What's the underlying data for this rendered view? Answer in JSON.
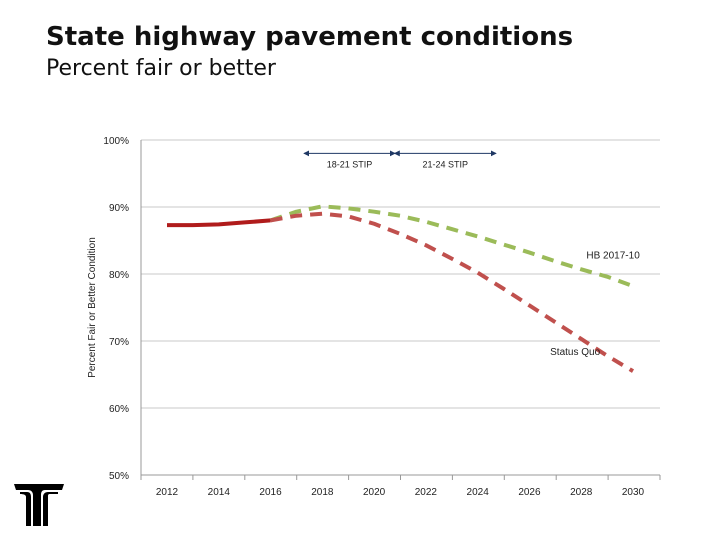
{
  "slide": {
    "title": "State highway pavement conditions",
    "subtitle": "Percent fair or better"
  },
  "chart_data": {
    "type": "line",
    "ylabel": "Percent Fair or Better Condition",
    "xlabel": "",
    "ylim": [
      50,
      100
    ],
    "yticks": [
      "50%",
      "60%",
      "70%",
      "80%",
      "90%",
      "100%"
    ],
    "xticks": [
      "2012",
      "2014",
      "2016",
      "2018",
      "2020",
      "2022",
      "2024",
      "2026",
      "2028",
      "2030"
    ],
    "xlim": [
      2012,
      2030
    ],
    "grid": "horizontal",
    "series": [
      {
        "style": "solid",
        "color": "#b01c1c",
        "x": [
          2012,
          2013,
          2014,
          2015,
          2016
        ],
        "y": [
          87.3,
          87.3,
          87.4,
          87.7,
          88.0
        ]
      },
      {
        "name": "HB 2017-10",
        "style": "dashed",
        "color": "#9bbb59",
        "x": [
          2016,
          2017,
          2018,
          2019,
          2020,
          2021,
          2022,
          2023,
          2024,
          2025,
          2026,
          2027,
          2028,
          2029,
          2030
        ],
        "y": [
          88.0,
          89.3,
          90.1,
          89.8,
          89.3,
          88.7,
          87.8,
          86.7,
          85.6,
          84.4,
          83.2,
          81.9,
          80.7,
          79.6,
          78.2
        ]
      },
      {
        "name": "Status Quo",
        "style": "dashed",
        "color": "#c0504d",
        "x": [
          2016,
          2017,
          2018,
          2019,
          2020,
          2021,
          2022,
          2023,
          2024,
          2025,
          2026,
          2027,
          2028,
          2029,
          2030
        ],
        "y": [
          88.0,
          88.7,
          89.0,
          88.6,
          87.5,
          86.0,
          84.3,
          82.3,
          80.2,
          77.8,
          75.3,
          72.8,
          70.3,
          67.8,
          65.5
        ]
      }
    ],
    "annotations": [
      {
        "label": "18-21 STIP",
        "from": 2017.3,
        "to": 2020.8,
        "y": 98
      },
      {
        "label": "21-24 STIP",
        "from": 2020.8,
        "to": 2024.7,
        "y": 98
      }
    ],
    "series_labels": [
      {
        "text": "HB 2017-10",
        "x": 2028.2,
        "y": 82.3
      },
      {
        "text": "Status Quo",
        "x": 2026.8,
        "y": 67.9
      }
    ]
  },
  "logo": {
    "alt": "ODOT logo"
  }
}
